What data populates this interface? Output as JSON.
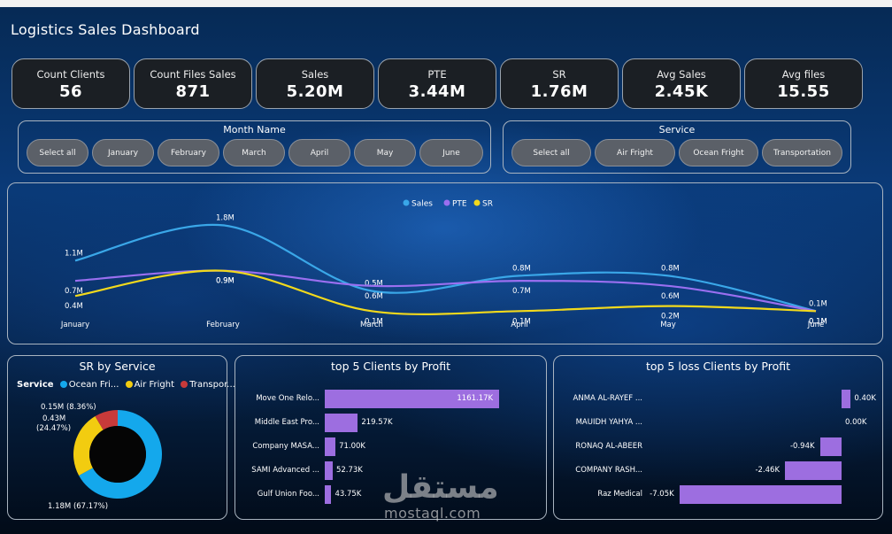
{
  "dashboard": {
    "title": "Logistics Sales Dashboard"
  },
  "kpis": [
    {
      "label": "Count Clients",
      "value": "56"
    },
    {
      "label": "Count Files Sales",
      "value": "871"
    },
    {
      "label": "Sales",
      "value": "5.20M"
    },
    {
      "label": "PTE",
      "value": "3.44M"
    },
    {
      "label": "SR",
      "value": "1.76M"
    },
    {
      "label": "Avg Sales",
      "value": "2.45K"
    },
    {
      "label": "Avg files",
      "value": "15.55"
    }
  ],
  "month_slicer": {
    "title": "Month Name",
    "options": [
      "Select all",
      "January",
      "February",
      "March",
      "April",
      "May",
      "June"
    ]
  },
  "service_slicer": {
    "title": "Service",
    "options": [
      "Select all",
      "Air Fright",
      "Ocean Fright",
      "Transportation"
    ]
  },
  "colors": {
    "sales": "#3aa7e8",
    "pte": "#9a6ff0",
    "sr": "#f2d91c",
    "bar": "#9d6ee0",
    "air": "#f2cc10",
    "ocean": "#14a8ec",
    "transport": "#c73a3a"
  },
  "chart_data": [
    {
      "type": "line",
      "categories": [
        "January",
        "February",
        "March",
        "April",
        "May",
        "June"
      ],
      "series": [
        {
          "name": "Sales",
          "values": [
            1.1,
            1.8,
            0.5,
            0.8,
            0.8,
            0.1
          ],
          "labels": [
            "1.1M",
            "1.8M",
            "0.5M",
            "0.8M",
            "0.8M",
            "0.1M"
          ]
        },
        {
          "name": "PTE",
          "values": [
            0.7,
            0.9,
            0.6,
            0.7,
            0.6,
            0.1
          ],
          "labels": [
            "0.7M",
            "0.9M",
            "0.6M",
            "0.7M",
            "0.6M",
            "0.1M"
          ]
        },
        {
          "name": "SR",
          "values": [
            0.4,
            0.9,
            0.1,
            0.1,
            0.2,
            0.1
          ],
          "labels": [
            "0.4M",
            "0.9M",
            "0.1M",
            "0.1M",
            "0.2M",
            "0.1M"
          ]
        }
      ],
      "legend": "top-center",
      "ylim": [
        0,
        2.0
      ]
    },
    {
      "type": "pie",
      "title": "SR by Service",
      "legend_title": "Service",
      "slices": [
        {
          "name": "Ocean Fri...",
          "value": 1.18,
          "label": "1.18M (67.17%)"
        },
        {
          "name": "Air Fright",
          "value": 0.43,
          "label": "0.43M (24.47%)"
        },
        {
          "name": "Transpor...",
          "value": 0.15,
          "label": "0.15M (8.36%)"
        }
      ]
    },
    {
      "type": "bar",
      "title": "top 5 Clients by Profit",
      "categories": [
        "Move One Relo...",
        "Middle East Pro...",
        "Company MASA...",
        "SAMI Advanced ...",
        "Gulf Union Foo..."
      ],
      "values": [
        1161.17,
        219.57,
        71.0,
        52.73,
        43.75
      ],
      "labels": [
        "1161.17K",
        "219.57K",
        "71.00K",
        "52.73K",
        "43.75K"
      ]
    },
    {
      "type": "bar",
      "title": "top 5 loss Clients by Profit",
      "categories": [
        "ANMA AL-RAYEF ...",
        "MAUIDH YAHYA ...",
        "RONAQ AL-ABEER",
        "COMPANY RASH...",
        "Raz Medical"
      ],
      "values": [
        0.4,
        0.0,
        -0.94,
        -2.46,
        -7.05
      ],
      "labels": [
        "0.40K",
        "0.00K",
        "-0.94K",
        "-2.46K",
        "-7.05K"
      ]
    }
  ],
  "watermark": {
    "arabic": "مستقل",
    "latin": "mostaql.com"
  }
}
